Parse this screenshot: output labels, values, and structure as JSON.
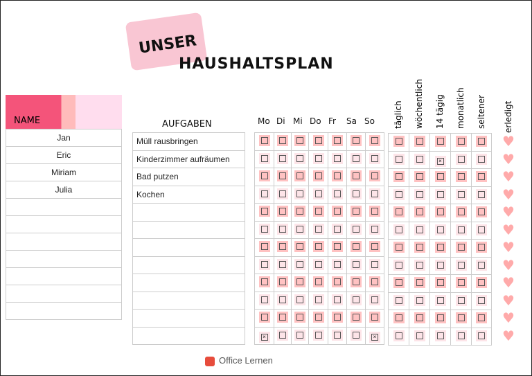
{
  "title": {
    "line1": "UNSER",
    "line2": "HAUSHALTSPLAN"
  },
  "names": {
    "header": "NAME",
    "rows": [
      "Jan",
      "Eric",
      "Miriam",
      "Julia",
      "",
      "",
      "",
      "",
      "",
      "",
      ""
    ]
  },
  "tasks": {
    "header": "AUFGABEN",
    "rows": [
      "Müll rausbringen",
      "Kinderzimmer aufräumen",
      "Bad putzen",
      "Kochen",
      "",
      "",
      "",
      "",
      "",
      "",
      "",
      ""
    ]
  },
  "days": [
    "Mo",
    "Di",
    "Mi",
    "Do",
    "Fr",
    "Sa",
    "So"
  ],
  "frequency": [
    "täglich",
    "wöchentlich",
    "14 tägig",
    "monatlich",
    "seltener"
  ],
  "done_header": "erledigt",
  "checked_days": [
    [],
    [],
    [],
    [],
    [],
    [],
    [],
    [],
    [],
    [],
    [],
    [
      "Mo",
      "So"
    ]
  ],
  "checked_frequency": [
    [],
    [
      "14 tägig"
    ],
    [],
    [],
    [],
    [],
    [],
    [],
    [],
    [],
    [],
    []
  ],
  "footer": "Office Lernen",
  "colors": {
    "accent": "#f4547a",
    "checkbox_bg": "#ffc2c2",
    "heart": "#ffaaaa"
  }
}
